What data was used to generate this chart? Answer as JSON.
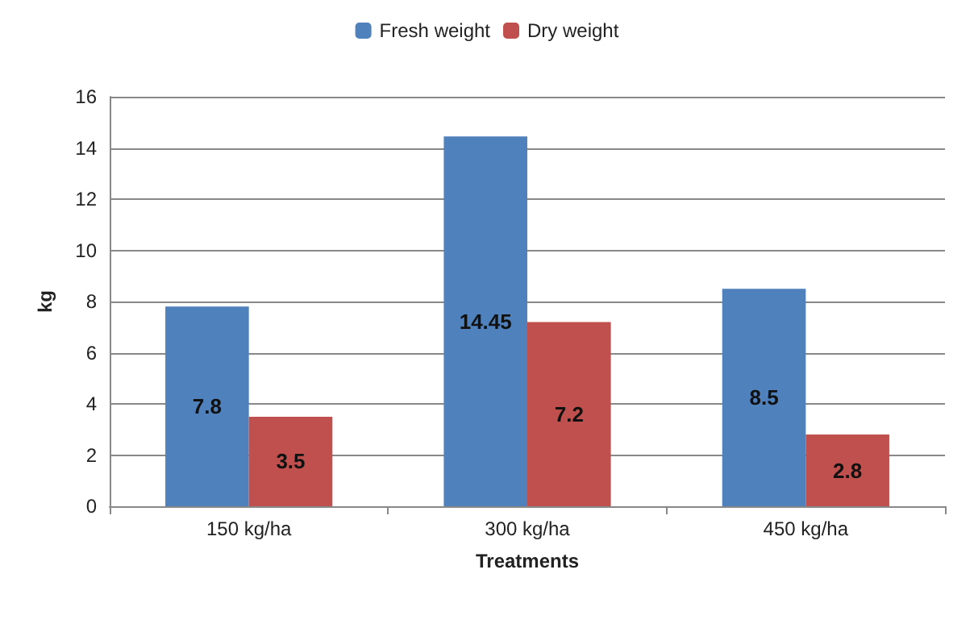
{
  "chart_data": {
    "type": "bar",
    "xlabel": "Treatments",
    "ylabel": "kg",
    "categories": [
      "150 kg/ha",
      "300 kg/ha",
      "450 kg/ha"
    ],
    "series": [
      {
        "name": "Fresh weight",
        "color": "#4f81bd",
        "values": [
          7.8,
          14.45,
          8.5
        ]
      },
      {
        "name": "Dry weight",
        "color": "#c0504d",
        "values": [
          3.5,
          7.2,
          2.8
        ]
      }
    ],
    "ylim": [
      0,
      16
    ],
    "yticks": [
      0,
      2,
      4,
      6,
      8,
      10,
      12,
      14,
      16
    ],
    "grid": "y",
    "legend": "top",
    "data_labels": true
  }
}
